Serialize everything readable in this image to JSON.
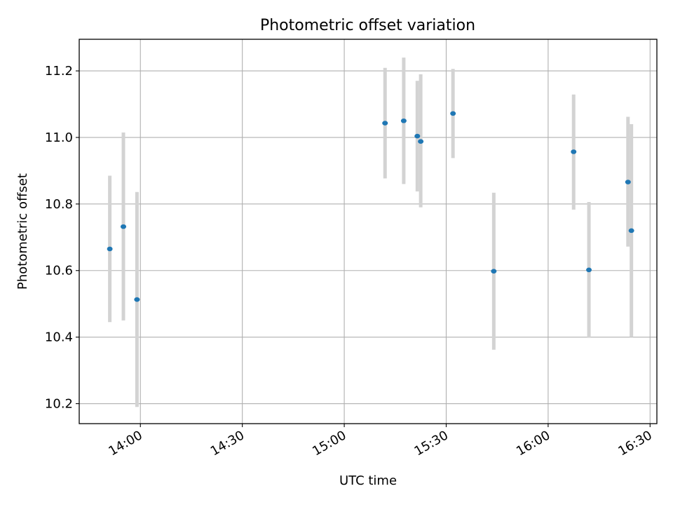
{
  "chart_data": {
    "type": "scatter",
    "title": "Photometric offset variation",
    "xlabel": "UTC time",
    "ylabel": "Photometric offset",
    "x_axis_type": "time",
    "xlim": [
      "13:42",
      "16:32"
    ],
    "ylim": [
      10.14,
      11.295
    ],
    "x_ticks": [
      "14:00",
      "14:30",
      "15:00",
      "15:30",
      "16:00",
      "16:30"
    ],
    "y_ticks": [
      10.2,
      10.4,
      10.6,
      10.8,
      11.0,
      11.2
    ],
    "grid": true,
    "marker_color": "#1f77b4",
    "errorbar_color": "#d3d3d3",
    "points": [
      {
        "x": "13:51",
        "y": 10.665,
        "ylow": 10.445,
        "yhigh": 10.885
      },
      {
        "x": "13:55",
        "y": 10.732,
        "ylow": 10.45,
        "yhigh": 11.015
      },
      {
        "x": "13:59",
        "y": 10.513,
        "ylow": 10.19,
        "yhigh": 10.836
      },
      {
        "x": "15:12",
        "y": 11.043,
        "ylow": 10.877,
        "yhigh": 11.209
      },
      {
        "x": "15:17.5",
        "y": 11.05,
        "ylow": 10.86,
        "yhigh": 11.24
      },
      {
        "x": "15:21.5",
        "y": 11.004,
        "ylow": 10.838,
        "yhigh": 11.17
      },
      {
        "x": "15:22.5",
        "y": 10.988,
        "ylow": 10.79,
        "yhigh": 11.19
      },
      {
        "x": "15:32",
        "y": 11.072,
        "ylow": 10.938,
        "yhigh": 11.206
      },
      {
        "x": "15:44",
        "y": 10.598,
        "ylow": 10.362,
        "yhigh": 10.834
      },
      {
        "x": "16:07.5",
        "y": 10.957,
        "ylow": 10.783,
        "yhigh": 11.129
      },
      {
        "x": "16:12",
        "y": 10.602,
        "ylow": 10.398,
        "yhigh": 10.806
      },
      {
        "x": "16:23.5",
        "y": 10.866,
        "ylow": 10.672,
        "yhigh": 11.062
      },
      {
        "x": "16:24.5",
        "y": 10.72,
        "ylow": 10.4,
        "yhigh": 11.04
      }
    ]
  }
}
